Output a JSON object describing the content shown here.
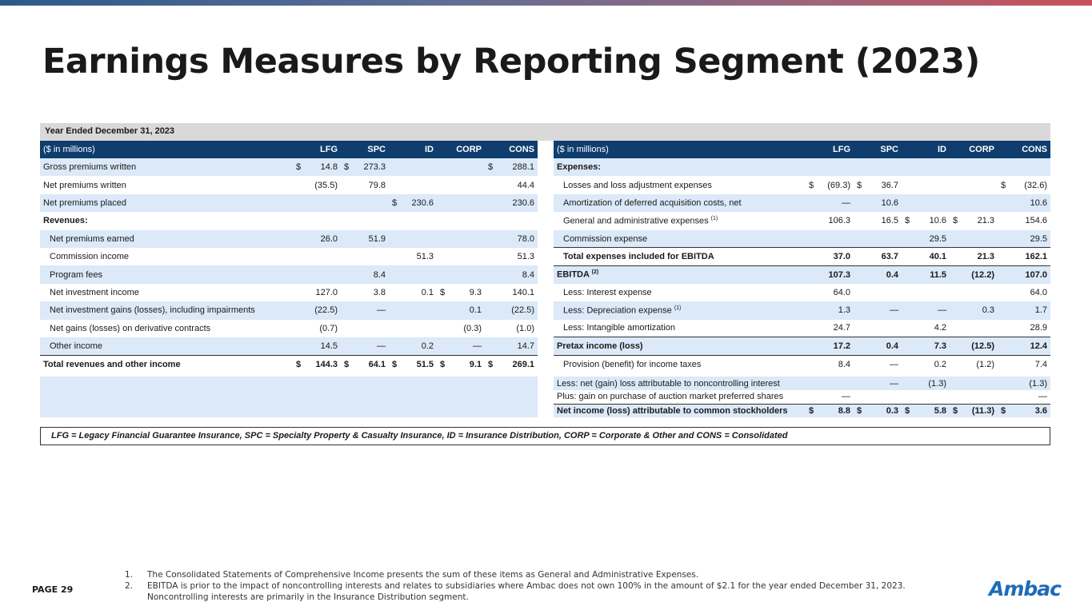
{
  "title": "Earnings Measures by Reporting Segment (2023)",
  "period": "Year Ended December 31, 2023",
  "units_label": "($ in millions)",
  "columns": [
    "LFG",
    "SPC",
    "ID",
    "CORP",
    "CONS"
  ],
  "left_rows": [
    {
      "label": "Gross premiums written",
      "style": "alt",
      "cells": [
        [
          "$",
          "14.8"
        ],
        [
          "$",
          "273.3"
        ],
        [
          "",
          ""
        ],
        [
          "",
          ""
        ],
        [
          "$",
          "288.1"
        ]
      ]
    },
    {
      "label": "Net premiums written",
      "style": "",
      "cells": [
        [
          "",
          "(35.5)"
        ],
        [
          "",
          "79.8"
        ],
        [
          "",
          ""
        ],
        [
          "",
          ""
        ],
        [
          "",
          "44.4"
        ]
      ]
    },
    {
      "label": "Net premiums placed",
      "style": "alt",
      "cells": [
        [
          "",
          ""
        ],
        [
          "",
          ""
        ],
        [
          "$",
          "230.6"
        ],
        [
          "",
          ""
        ],
        [
          "",
          "230.6"
        ]
      ]
    },
    {
      "label": "Revenues:",
      "style": "bold",
      "cells": [
        [
          "",
          ""
        ],
        [
          "",
          ""
        ],
        [
          "",
          ""
        ],
        [
          "",
          ""
        ],
        [
          "",
          ""
        ]
      ]
    },
    {
      "label": "Net premiums earned",
      "style": "alt ind",
      "cells": [
        [
          "",
          "26.0"
        ],
        [
          "",
          "51.9"
        ],
        [
          "",
          ""
        ],
        [
          "",
          ""
        ],
        [
          "",
          "78.0"
        ]
      ]
    },
    {
      "label": "Commission income",
      "style": "ind",
      "cells": [
        [
          "",
          ""
        ],
        [
          "",
          ""
        ],
        [
          "",
          "51.3"
        ],
        [
          "",
          ""
        ],
        [
          "",
          "51.3"
        ]
      ]
    },
    {
      "label": "Program fees",
      "style": "alt ind",
      "cells": [
        [
          "",
          ""
        ],
        [
          "",
          "8.4"
        ],
        [
          "",
          ""
        ],
        [
          "",
          ""
        ],
        [
          "",
          "8.4"
        ]
      ]
    },
    {
      "label": "Net investment income",
      "style": "ind",
      "cells": [
        [
          "",
          "127.0"
        ],
        [
          "",
          "3.8"
        ],
        [
          "",
          "0.1"
        ],
        [
          "$",
          "9.3"
        ],
        [
          "",
          "140.1"
        ]
      ]
    },
    {
      "label": "Net investment gains (losses), including impairments",
      "style": "alt ind",
      "cells": [
        [
          "",
          "(22.5)"
        ],
        [
          "",
          "—"
        ],
        [
          "",
          ""
        ],
        [
          "",
          "0.1"
        ],
        [
          "",
          "(22.5)"
        ]
      ]
    },
    {
      "label": "Net gains (losses) on derivative contracts",
      "style": "ind",
      "cells": [
        [
          "",
          "(0.7)"
        ],
        [
          "",
          ""
        ],
        [
          "",
          ""
        ],
        [
          "",
          "(0.3)"
        ],
        [
          "",
          "(1.0)"
        ]
      ]
    },
    {
      "label": "Other income",
      "style": "alt ind ul",
      "cells": [
        [
          "",
          "14.5"
        ],
        [
          "",
          "—"
        ],
        [
          "",
          "0.2"
        ],
        [
          "",
          "—"
        ],
        [
          "",
          "14.7"
        ]
      ]
    },
    {
      "label": "Total revenues and other income",
      "style": "bold",
      "cells": [
        [
          "$",
          "144.3"
        ],
        [
          "$",
          "64.1"
        ],
        [
          "$",
          "51.5"
        ],
        [
          "$",
          "9.1"
        ],
        [
          "$",
          "269.1"
        ]
      ]
    }
  ],
  "right_rows": [
    {
      "label": "Expenses:",
      "sup": "",
      "style": "alt bold",
      "cells": [
        [
          "",
          ""
        ],
        [
          "",
          ""
        ],
        [
          "",
          ""
        ],
        [
          "",
          ""
        ],
        [
          "",
          ""
        ]
      ]
    },
    {
      "label": "Losses and loss adjustment expenses",
      "sup": "",
      "style": "ind",
      "cells": [
        [
          "$",
          "(69.3)"
        ],
        [
          "$",
          "36.7"
        ],
        [
          "",
          ""
        ],
        [
          "",
          ""
        ],
        [
          "$",
          "(32.6)"
        ]
      ]
    },
    {
      "label": "Amortization of deferred acquisition costs, net",
      "sup": "",
      "style": "alt ind",
      "cells": [
        [
          "",
          "—"
        ],
        [
          "",
          "10.6"
        ],
        [
          "",
          ""
        ],
        [
          "",
          ""
        ],
        [
          "",
          "10.6"
        ]
      ]
    },
    {
      "label": "General and administrative expenses",
      "sup": "(1)",
      "style": "ind",
      "cells": [
        [
          "",
          "106.3"
        ],
        [
          "",
          "16.5"
        ],
        [
          "$",
          "10.6"
        ],
        [
          "$",
          "21.3"
        ],
        [
          "",
          "154.6"
        ]
      ]
    },
    {
      "label": "Commission expense",
      "sup": "",
      "style": "alt ind ul",
      "cells": [
        [
          "",
          ""
        ],
        [
          "",
          ""
        ],
        [
          "",
          "29.5"
        ],
        [
          "",
          ""
        ],
        [
          "",
          "29.5"
        ]
      ]
    },
    {
      "label": "Total expenses included for EBITDA",
      "sup": "",
      "style": "bold ind ul",
      "cells": [
        [
          "",
          "37.0"
        ],
        [
          "",
          "63.7"
        ],
        [
          "",
          "40.1"
        ],
        [
          "",
          "21.3"
        ],
        [
          "",
          "162.1"
        ]
      ]
    },
    {
      "label": "EBITDA",
      "sup": "(2)",
      "style": "alt bold",
      "cells": [
        [
          "",
          "107.3"
        ],
        [
          "",
          "0.4"
        ],
        [
          "",
          "11.5"
        ],
        [
          "",
          "(12.2)"
        ],
        [
          "",
          "107.0"
        ]
      ]
    },
    {
      "label": "Less: Interest expense",
      "sup": "",
      "style": "ind",
      "cells": [
        [
          "",
          "64.0"
        ],
        [
          "",
          ""
        ],
        [
          "",
          ""
        ],
        [
          "",
          ""
        ],
        [
          "",
          "64.0"
        ]
      ]
    },
    {
      "label": "Less: Depreciation expense",
      "sup": "(1)",
      "style": "alt ind",
      "cells": [
        [
          "",
          "1.3"
        ],
        [
          "",
          "—"
        ],
        [
          "",
          "—"
        ],
        [
          "",
          "0.3"
        ],
        [
          "",
          "1.7"
        ]
      ]
    },
    {
      "label": "Less: Intangible amortization",
      "sup": "",
      "style": "ind ul",
      "cells": [
        [
          "",
          "24.7"
        ],
        [
          "",
          ""
        ],
        [
          "",
          "4.2"
        ],
        [
          "",
          ""
        ],
        [
          "",
          "28.9"
        ]
      ]
    },
    {
      "label": "Pretax income (loss)",
      "sup": "",
      "style": "alt bold ul",
      "cells": [
        [
          "",
          "17.2"
        ],
        [
          "",
          "0.4"
        ],
        [
          "",
          "7.3"
        ],
        [
          "",
          "(12.5)"
        ],
        [
          "",
          "12.4"
        ]
      ]
    },
    {
      "label": "Provision (benefit) for income taxes",
      "sup": "",
      "style": "ind",
      "cells": [
        [
          "",
          "8.4"
        ],
        [
          "",
          "—"
        ],
        [
          "",
          "0.2"
        ],
        [
          "",
          "(1.2)"
        ],
        [
          "",
          "7.4"
        ]
      ]
    }
  ],
  "right_bottom_rows": [
    {
      "label": "Less: net (gain) loss attributable to noncontrolling interest",
      "style": "alt",
      "cells": [
        [
          "",
          ""
        ],
        [
          "",
          "—"
        ],
        [
          "",
          "(1.3)"
        ],
        [
          "",
          ""
        ],
        [
          "",
          "(1.3)"
        ]
      ]
    },
    {
      "label": "Plus: gain on purchase of auction market preferred shares",
      "style": "ul",
      "cells": [
        [
          "",
          "—"
        ],
        [
          "",
          ""
        ],
        [
          "",
          ""
        ],
        [
          "",
          ""
        ],
        [
          "",
          "—"
        ]
      ]
    },
    {
      "label": "Net income (loss) attributable to common stockholders",
      "style": "alt bold",
      "cells": [
        [
          "$",
          "8.8"
        ],
        [
          "$",
          "0.3"
        ],
        [
          "$",
          "5.8"
        ],
        [
          "$",
          "(11.3)"
        ],
        [
          "$",
          "3.6"
        ]
      ]
    }
  ],
  "legend": "LFG = Legacy Financial Guarantee Insurance, SPC = Specialty Property & Casualty Insurance, ID = Insurance Distribution, CORP = Corporate & Other and CONS = Consolidated",
  "footnotes": [
    {
      "num": "1.",
      "text": "The Consolidated Statements of Comprehensive Income presents the sum of these items as General and Administrative Expenses."
    },
    {
      "num": "2.",
      "text": "EBITDA is prior to the impact of noncontrolling interests and relates to subsidiaries where Ambac does not own 100% in the amount of $2.1 for the year ended December 31, 2023."
    },
    {
      "num": "",
      "text": "Noncontrolling interests are primarily in the Insurance Distribution segment."
    }
  ],
  "page_label": "PAGE 29",
  "logo_text": "Ambac",
  "colors": {
    "header_blue": "#0f3e6e",
    "row_alt": "#dbe9f8",
    "logo_blue": "#1e6bb8"
  }
}
